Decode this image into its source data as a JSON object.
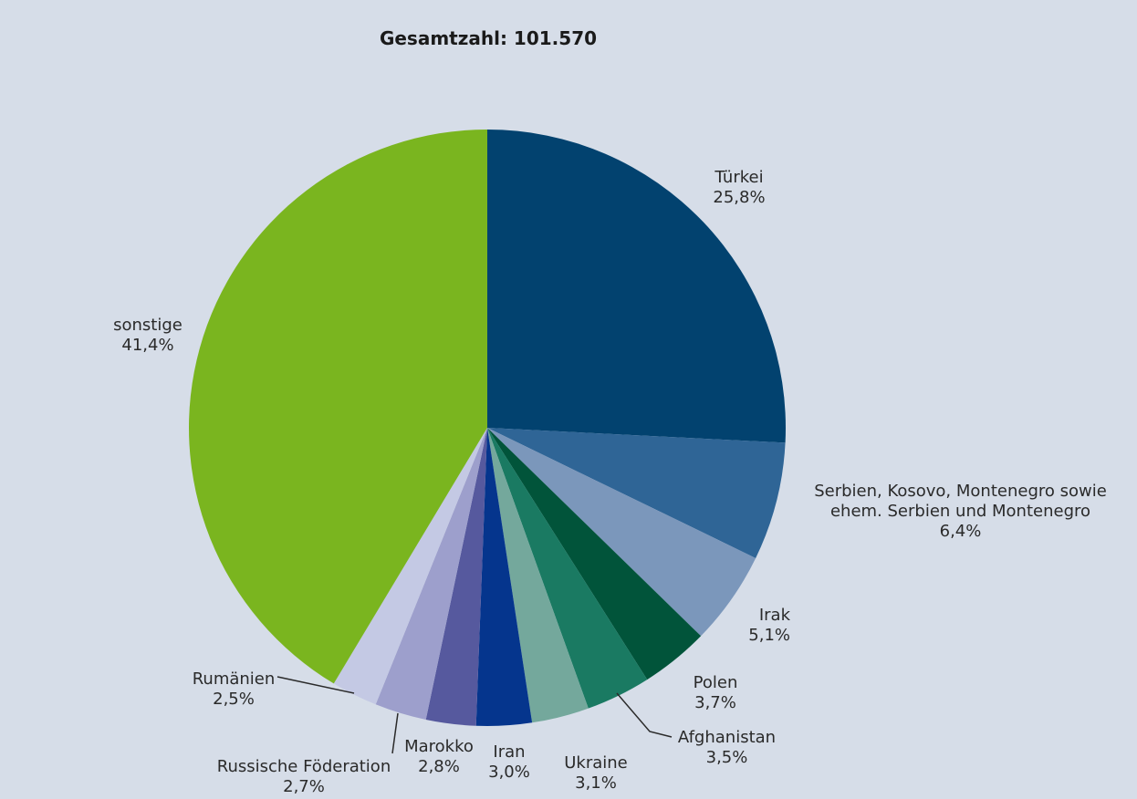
{
  "chart_data": {
    "type": "pie",
    "title": "Gesamtzahl: 101.570",
    "slices": [
      {
        "name": "Türkei",
        "value": 25.8,
        "label": "25,8%",
        "color": "#02426f"
      },
      {
        "name": "Serbien, Kosovo, Montenegro sowie ehem. Serbien und Montenegro",
        "name_lines": [
          "Serbien, Kosovo, Montenegro sowie",
          "ehem. Serbien und Montenegro"
        ],
        "value": 6.4,
        "label": "6,4%",
        "color": "#2f6596"
      },
      {
        "name": "Irak",
        "value": 5.1,
        "label": "5,1%",
        "color": "#7b97bb"
      },
      {
        "name": "Polen",
        "value": 3.7,
        "label": "3,7%",
        "color": "#01543a"
      },
      {
        "name": "Afghanistan",
        "value": 3.5,
        "label": "3,5%",
        "color": "#1a7a62"
      },
      {
        "name": "Ukraine",
        "value": 3.1,
        "label": "3,1%",
        "color": "#74a89c"
      },
      {
        "name": "Iran",
        "value": 3.0,
        "label": "3,0%",
        "color": "#05358d"
      },
      {
        "name": "Russische Föderation",
        "value": 2.7,
        "label": "2,7%",
        "color": "#56599e"
      },
      {
        "name": "Marokko",
        "value": 2.8,
        "label": "2,8%",
        "color": "#9d9fcc"
      },
      {
        "name": "Rumänien",
        "value": 2.5,
        "label": "2,5%",
        "color": "#c4c9e4"
      },
      {
        "name": "sonstige",
        "value": 41.4,
        "label": "41,4%",
        "color": "#7ab51f"
      }
    ]
  }
}
